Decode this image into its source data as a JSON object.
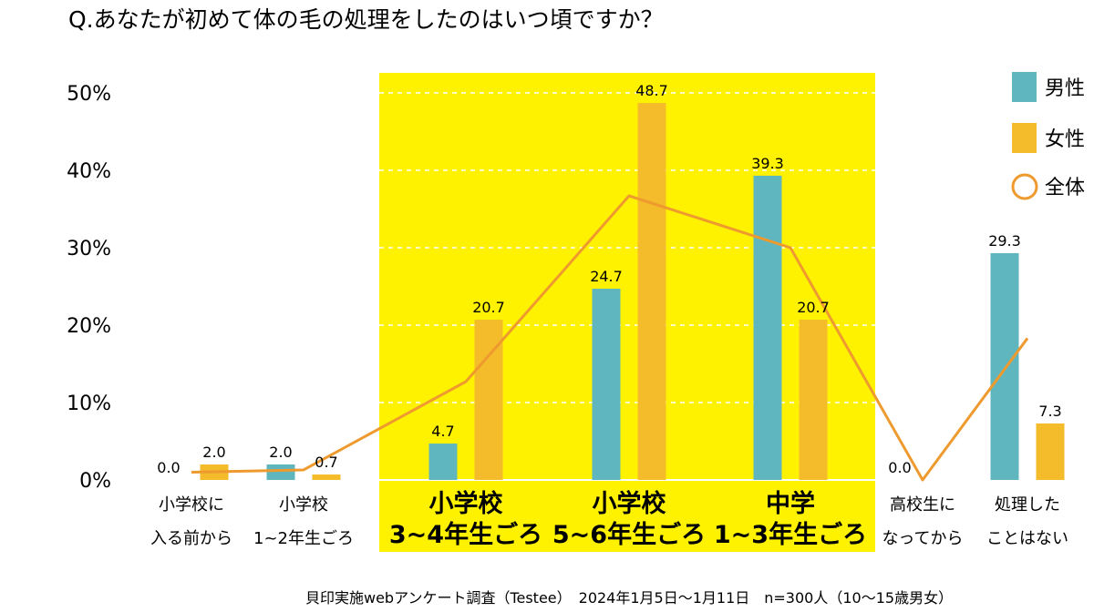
{
  "title": "Q.あなたが初めて体の毛の処理をしたのはいつ頃ですか？",
  "footer": "貝印実施webアンケート調査（Testee）　2024年1月5日～1月11日　n=300人（10～15歳男女）",
  "chart_data": {
    "type": "bar",
    "title": "Q.あなたが初めて体の毛の処理をしたのはいつ頃ですか？",
    "categories": [
      [
        "小学校に",
        "入る前から"
      ],
      [
        "小学校",
        "1~2年生ごろ"
      ],
      [
        "小学校",
        "3~4年生ごろ"
      ],
      [
        "小学校",
        "5~6年生ごろ"
      ],
      [
        "中学",
        "1~3年生ごろ"
      ],
      [
        "高校生に",
        "なってから"
      ],
      [
        "処理した",
        "ことはない"
      ]
    ],
    "highlighted_categories": [
      2,
      3,
      4
    ],
    "y_ticks": [
      "0%",
      "10%",
      "20%",
      "30%",
      "40%",
      "50%"
    ],
    "ylim": [
      0,
      50
    ],
    "series": [
      {
        "name": "男性",
        "type": "bar",
        "color": "#5fb6be",
        "values": [
          0.0,
          2.0,
          4.7,
          24.7,
          39.3,
          0.0,
          29.3
        ]
      },
      {
        "name": "女性",
        "type": "bar",
        "color": "#f4bb2b",
        "values": [
          2.0,
          0.7,
          20.7,
          48.7,
          20.7,
          null,
          7.3
        ]
      },
      {
        "name": "全体",
        "type": "line",
        "color": "#ee9a2e",
        "values": [
          1.0,
          1.3,
          12.7,
          36.7,
          30.0,
          0.0,
          18.3
        ]
      }
    ],
    "value_labels": {
      "男性": [
        "0.0",
        "2.0",
        "4.7",
        "24.7",
        "39.3",
        "0.0",
        "29.3"
      ],
      "女性": [
        "2.0",
        "0.7",
        "20.7",
        "48.7",
        "20.7",
        "",
        "7.3"
      ]
    },
    "legend_position": "top-right",
    "highlight_color": "#fff200",
    "grid": "dashed-in-highlight"
  }
}
